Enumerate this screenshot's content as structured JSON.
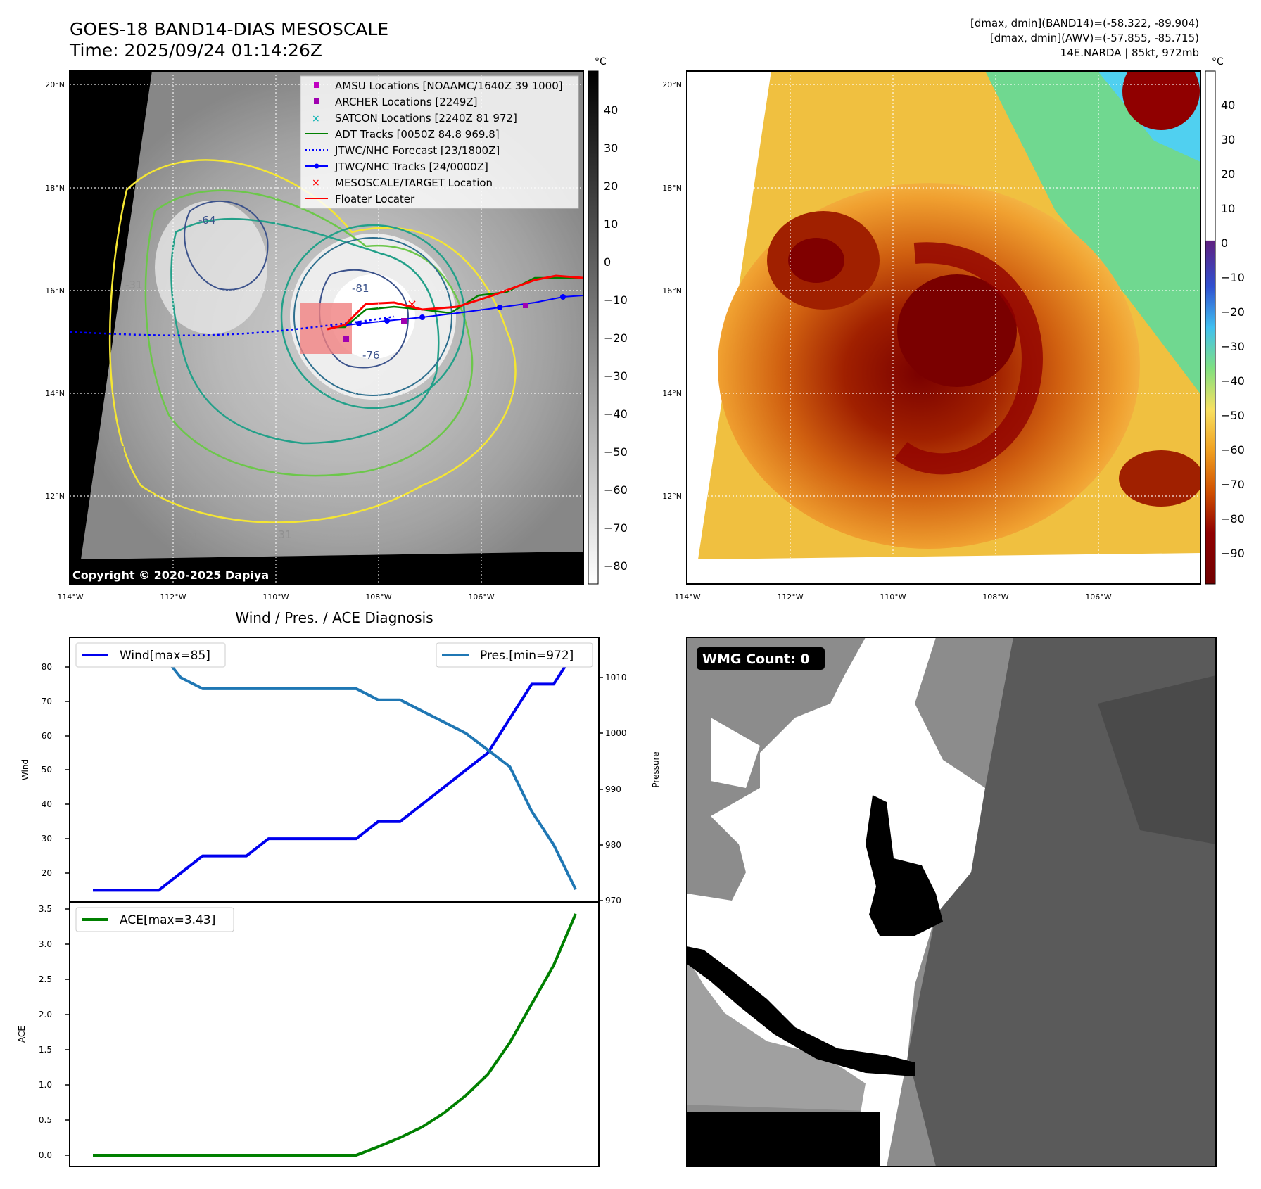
{
  "header": {
    "title_line1": "GOES-18 BAND14-DIAS MESOSCALE",
    "title_line2": "Time: 2025/09/24 01:14:26Z",
    "right_line1": "[dmax, dmin](BAND14)=(-58.322, -89.904)",
    "right_line2": "[dmax, dmin](AWV)=(-57.855, -85.715)",
    "right_line3": "14E.NARDA | 85kt, 972mb"
  },
  "map": {
    "lon_labels": [
      "114°W",
      "112°W",
      "110°W",
      "108°W",
      "106°W"
    ],
    "lat_labels": [
      "20°N",
      "18°N",
      "16°N",
      "14°N",
      "12°N"
    ],
    "contour_labels": [
      "-64",
      "-81",
      "-76",
      "-31",
      "-31",
      "-31",
      "-31",
      "-31"
    ],
    "copyright": "Copyright © 2020-2025 Dapiya"
  },
  "legend": [
    {
      "label": "AMSU Locations [NOAAMC/1640Z 39 1000]",
      "marker": "square",
      "color": "#c000c0"
    },
    {
      "label": "ARCHER Locations [2249Z]",
      "marker": "square",
      "color": "#a000b0"
    },
    {
      "label": "SATCON Locations [2240Z 81 972]",
      "marker": "x",
      "color": "#00b0b0"
    },
    {
      "label": "ADT Tracks [0050Z 84.8 969.8]",
      "marker": "line",
      "color": "#008000"
    },
    {
      "label": "JTWC/NHC Forecast [23/1800Z]",
      "marker": "dotted",
      "color": "#0000ff"
    },
    {
      "label": "JTWC/NHC Tracks [24/0000Z]",
      "marker": "line-dot",
      "color": "#0000ff"
    },
    {
      "label": "MESOSCALE/TARGET Location",
      "marker": "x",
      "color": "#ff0000"
    },
    {
      "label": "Floater Locater",
      "marker": "line",
      "color": "#ff0000"
    }
  ],
  "colorbar_gray": {
    "unit": "°C",
    "ticks": [
      "40",
      "30",
      "20",
      "10",
      "0",
      "−10",
      "−20",
      "−30",
      "−40",
      "−50",
      "−60",
      "−70",
      "−80"
    ]
  },
  "colorbar_color": {
    "unit": "°C",
    "ticks": [
      "40",
      "30",
      "20",
      "10",
      "0",
      "−10",
      "−20",
      "−30",
      "−40",
      "−50",
      "−60",
      "−70",
      "−80",
      "−90"
    ]
  },
  "diag": {
    "title": "Wind / Pres. / ACE Diagnosis",
    "wind_ylabel": "Wind",
    "pres_ylabel": "Pressure",
    "ace_ylabel": "ACE",
    "wind_legend": "Wind[max=85]",
    "pres_legend": "Pres.[min=972]",
    "ace_legend": "ACE[max=3.43]",
    "wind_ticks": [
      "80",
      "70",
      "60",
      "50",
      "40",
      "30",
      "20"
    ],
    "pres_ticks": [
      "1010",
      "1000",
      "990",
      "980",
      "970"
    ],
    "ace_ticks": [
      "3.5",
      "3.0",
      "2.5",
      "2.0",
      "1.5",
      "1.0",
      "0.5",
      "0.0"
    ]
  },
  "wmg": {
    "label": "WMG Count: 0"
  },
  "chart_data": [
    {
      "type": "line",
      "title": "Wind / Pres. / ACE Diagnosis",
      "x": [
        0,
        1,
        2,
        3,
        4,
        5,
        6,
        7,
        8,
        9,
        10,
        11,
        12,
        13,
        14,
        15,
        16,
        17,
        18,
        19,
        20,
        21,
        22
      ],
      "series": [
        {
          "name": "Wind[max=85]",
          "axis": "left",
          "color": "#0000ee",
          "values": [
            15,
            15,
            15,
            15,
            20,
            25,
            25,
            25,
            30,
            30,
            30,
            30,
            30,
            35,
            35,
            40,
            45,
            50,
            55,
            65,
            75,
            75,
            85
          ]
        },
        {
          "name": "Pres.[min=972]",
          "axis": "right",
          "color": "#1f77b4",
          "values": [
            1015,
            1015,
            1015,
            1015,
            1010,
            1008,
            1008,
            1008,
            1008,
            1008,
            1008,
            1008,
            1008,
            1006,
            1006,
            1004,
            1002,
            1000,
            997,
            994,
            986,
            980,
            972
          ]
        }
      ],
      "ylabel": "Wind",
      "ylim": [
        12,
        88
      ],
      "y2label": "Pressure",
      "y2lim": [
        970,
        1017.5
      ]
    },
    {
      "type": "line",
      "x": [
        0,
        1,
        2,
        3,
        4,
        5,
        6,
        7,
        8,
        9,
        10,
        11,
        12,
        13,
        14,
        15,
        16,
        17,
        18,
        19,
        20,
        21,
        22
      ],
      "series": [
        {
          "name": "ACE[max=3.43]",
          "color": "#008000",
          "values": [
            0,
            0,
            0,
            0,
            0,
            0,
            0,
            0,
            0,
            0,
            0,
            0,
            0.0,
            0.12,
            0.25,
            0.4,
            0.6,
            0.85,
            1.15,
            1.6,
            2.15,
            2.7,
            3.43
          ]
        }
      ],
      "ylabel": "ACE",
      "ylim": [
        -0.1,
        3.5
      ]
    }
  ]
}
